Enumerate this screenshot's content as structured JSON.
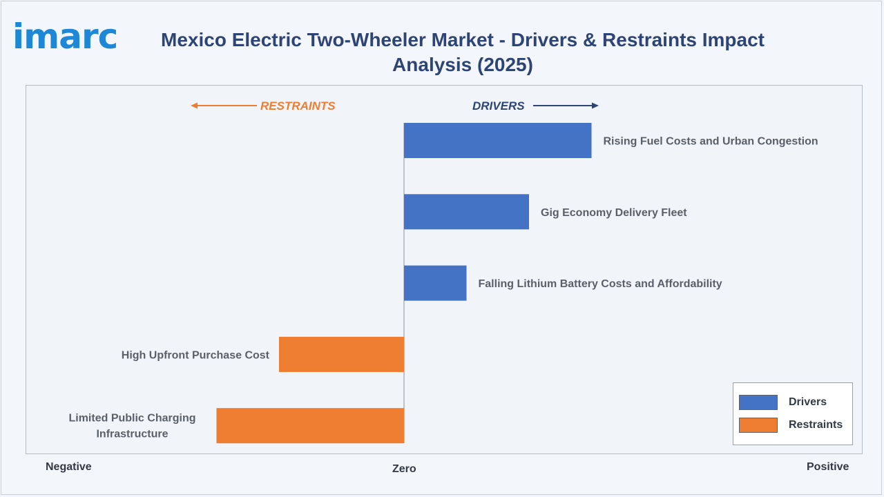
{
  "header": {
    "logo_text": "imarc",
    "title": "Mexico Electric Two-Wheeler Market - Drivers & Restraints Impact Analysis (2025)"
  },
  "colors": {
    "drivers": "#4472c4",
    "restraints": "#ed7d31",
    "drivers_heading": "#2d4474",
    "restraints_heading": "#ed7d31"
  },
  "chart_data": {
    "type": "bar",
    "orientation": "horizontal",
    "title": "Mexico Electric Two-Wheeler Market - Drivers & Restraints Impact Analysis (2025)",
    "section_headings": {
      "restraints": "RESTRAINTS",
      "drivers": "DRIVERS"
    },
    "axis_labels": {
      "negative": "Negative",
      "zero": "Zero",
      "positive": "Positive"
    },
    "xlim": [
      -3,
      3
    ],
    "grid": false,
    "legend_position": "bottom-right",
    "categories": [
      "Rising Fuel Costs and Urban Congestion",
      "Gig Economy Delivery Fleet",
      "Falling Lithium Battery Costs and Affordability",
      "High Upfront Purchase Cost",
      "Limited Public Charging Infrastructure"
    ],
    "series": [
      {
        "name": "Drivers",
        "values": [
          3.0,
          2.0,
          1.0,
          null,
          null
        ]
      },
      {
        "name": "Restraints",
        "values": [
          null,
          null,
          null,
          -2.0,
          -3.0
        ]
      }
    ]
  }
}
